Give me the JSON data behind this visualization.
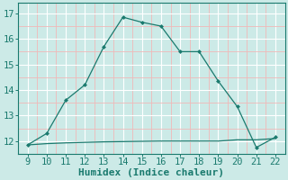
{
  "xlabel": "Humidex (Indice chaleur)",
  "x": [
    9,
    10,
    11,
    12,
    13,
    14,
    15,
    16,
    17,
    18,
    19,
    20,
    21,
    22
  ],
  "y_main": [
    11.85,
    12.3,
    13.6,
    14.2,
    15.7,
    16.85,
    16.65,
    16.5,
    15.5,
    15.5,
    14.35,
    13.35,
    11.75,
    12.15
  ],
  "y_flat": [
    11.85,
    11.9,
    11.93,
    11.95,
    11.97,
    11.98,
    11.99,
    12.0,
    12.0,
    12.0,
    12.0,
    12.05,
    12.05,
    12.1
  ],
  "line_color": "#1a7a6e",
  "bg_color": "#cceae7",
  "grid_major_color": "#ffffff",
  "grid_minor_color": "#f0b8b8",
  "ylim": [
    11.5,
    17.4
  ],
  "xlim": [
    8.5,
    22.5
  ],
  "yticks": [
    12,
    13,
    14,
    15,
    16,
    17
  ],
  "xticks": [
    9,
    10,
    11,
    12,
    13,
    14,
    15,
    16,
    17,
    18,
    19,
    20,
    21,
    22
  ],
  "tick_fontsize": 7.5,
  "xlabel_fontsize": 8.0
}
